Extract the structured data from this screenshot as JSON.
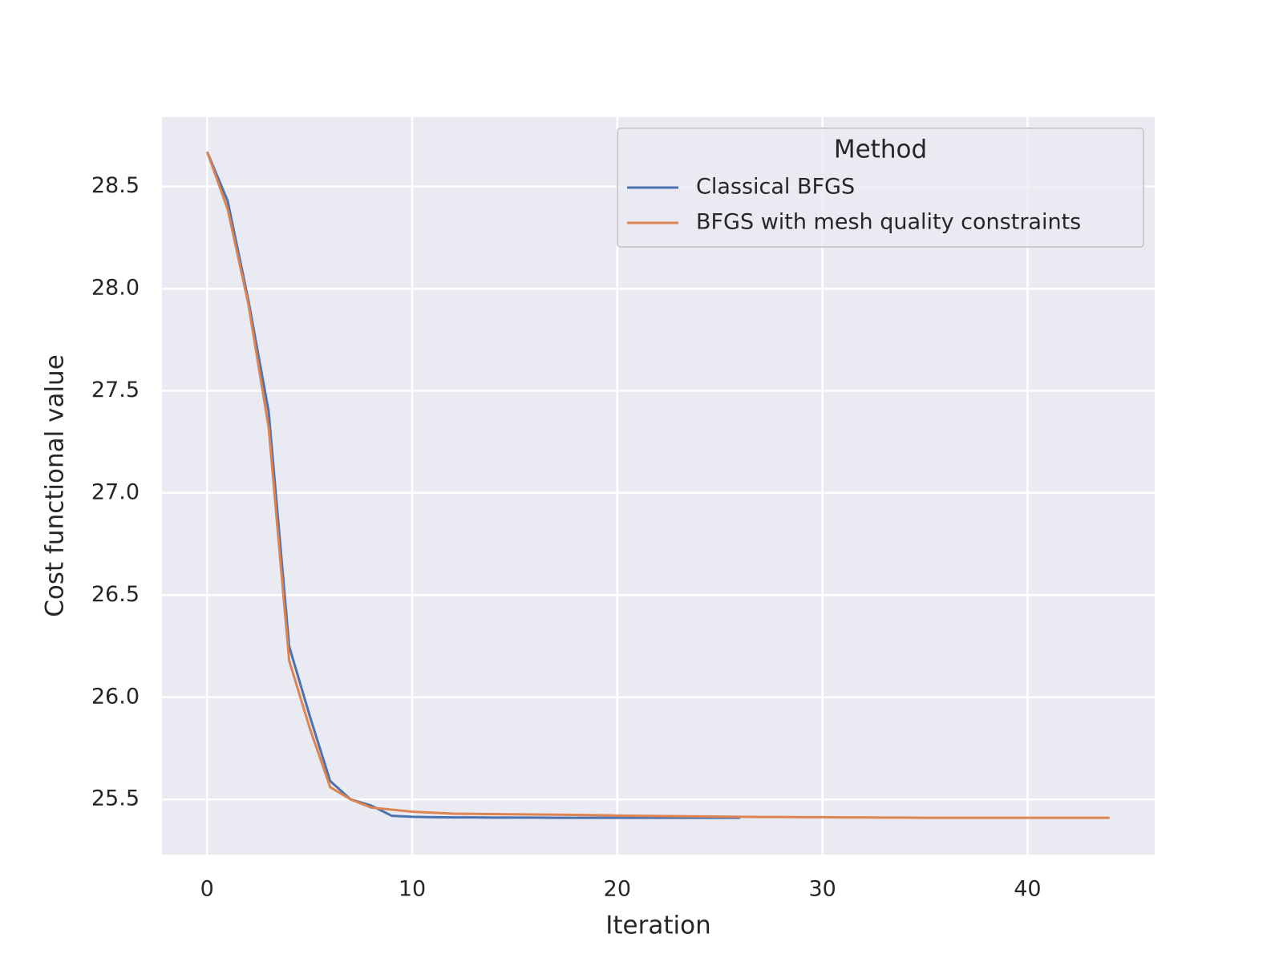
{
  "chart_data": {
    "type": "line",
    "xlabel": "Iteration",
    "ylabel": "Cost functional value",
    "xlim": [
      -2.2,
      46.2
    ],
    "ylim": [
      25.23,
      28.84
    ],
    "xticks": [
      0,
      10,
      20,
      30,
      40
    ],
    "yticks": [
      {
        "value": 25.5,
        "label": "25.5"
      },
      {
        "value": 26,
        "label": "26.0"
      },
      {
        "value": 26.5,
        "label": "26.5"
      },
      {
        "value": 27,
        "label": "27.0"
      },
      {
        "value": 27.5,
        "label": "27.5"
      },
      {
        "value": 28,
        "label": "28.0"
      },
      {
        "value": 28.5,
        "label": "28.5"
      }
    ],
    "grid": true,
    "legend_title": "Method",
    "legend_position": "upper-right",
    "series": [
      {
        "name": "Classical BFGS",
        "color": "#4c72b0",
        "x": [
          0,
          1,
          2,
          3,
          4,
          5,
          6,
          7,
          8,
          9,
          10,
          11,
          12,
          13,
          14,
          15,
          16,
          17,
          18,
          19,
          20,
          21,
          22,
          23,
          24,
          25,
          26
        ],
        "values": [
          28.67,
          28.43,
          27.95,
          27.4,
          26.25,
          25.91,
          25.59,
          25.5,
          25.47,
          25.42,
          25.415,
          25.413,
          25.412,
          25.412,
          25.411,
          25.411,
          25.411,
          25.41,
          25.41,
          25.41,
          25.41,
          25.41,
          25.41,
          25.41,
          25.41,
          25.41,
          25.41
        ]
      },
      {
        "name": "BFGS with mesh quality constraints",
        "color": "#dd8452",
        "x": [
          0,
          1,
          2,
          3,
          4,
          5,
          6,
          7,
          8,
          9,
          10,
          11,
          12,
          13,
          14,
          15,
          16,
          17,
          18,
          19,
          20,
          21,
          22,
          23,
          24,
          25,
          26,
          27,
          28,
          29,
          30,
          31,
          32,
          33,
          34,
          35,
          36,
          37,
          38,
          39,
          40,
          41,
          42,
          43,
          44
        ],
        "values": [
          28.67,
          28.39,
          27.93,
          27.32,
          26.18,
          25.85,
          25.56,
          25.5,
          25.46,
          25.45,
          25.44,
          25.435,
          25.43,
          25.429,
          25.428,
          25.427,
          25.426,
          25.425,
          25.424,
          25.423,
          25.421,
          25.42,
          25.419,
          25.418,
          25.417,
          25.416,
          25.415,
          25.414,
          25.414,
          25.413,
          25.413,
          25.412,
          25.412,
          25.411,
          25.411,
          25.41,
          25.41,
          25.41,
          25.41,
          25.41,
          25.41,
          25.41,
          25.41,
          25.41,
          25.41
        ]
      }
    ]
  }
}
